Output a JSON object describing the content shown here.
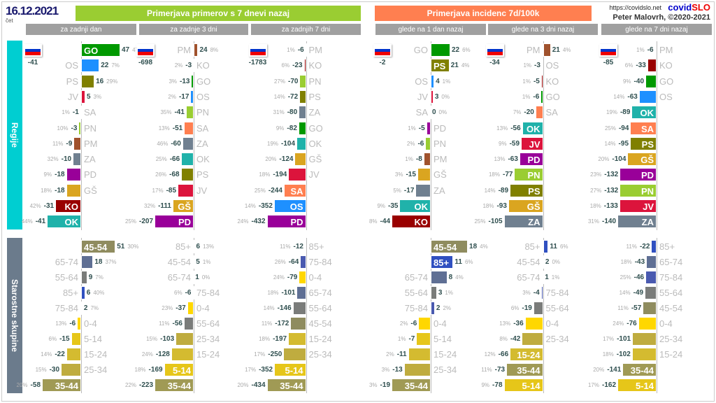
{
  "header": {
    "date": "16.12.2021",
    "day": "čet",
    "url": "https://covidslo.net",
    "brand_a": "covid",
    "brand_b": "SLO",
    "author": "Peter Malovrh, ©2020-2021"
  },
  "groups": [
    {
      "title": "Primerjava primerov s 7 dnevi nazaj",
      "color": "#9acd32"
    },
    {
      "title": "Primerjava incidenc 7d/100k",
      "color": "#ff7f50"
    }
  ],
  "sections": {
    "regions": "Regije",
    "ages": "Starostne skupine"
  },
  "colors": {
    "GO": "#009900",
    "OS": "#1e90ff",
    "PS": "#808000",
    "JV": "#dc143c",
    "SA": "#ff7f50",
    "PN": "#9acd32",
    "PM": "#a0522d",
    "ZA": "#708090",
    "PD": "#990099",
    "GŠ": "#daa520",
    "KO": "#990000",
    "OK": "#20b2aa",
    "45-54": "#8f8c5f",
    "65-74": "#5f6f94",
    "55-64": "#7a7c7a",
    "85+": "#3050c0",
    "75-84": "#4a5ab0",
    "0-4": "#ffd700",
    "5-14": "#e6c619",
    "15-24": "#d4bb30",
    "25-34": "#bfac3f",
    "35-44": "#a09a55"
  },
  "chart_data": [
    {
      "type": "bar",
      "title": "za zadnji dan",
      "total": "-41",
      "regions": [
        [
          "GO",
          47,
          "47%"
        ],
        [
          "OS",
          22,
          "7%"
        ],
        [
          "PS",
          16,
          "29%"
        ],
        [
          "JV",
          5,
          "3%"
        ],
        [
          "SA",
          -1,
          "1%"
        ],
        [
          "PN",
          -3,
          "10%"
        ],
        [
          "PM",
          -9,
          "11%"
        ],
        [
          "ZA",
          -10,
          "32%"
        ],
        [
          "PD",
          -18,
          "9%"
        ],
        [
          "GŠ",
          -18,
          "18%"
        ],
        [
          "KO",
          -31,
          "42%"
        ],
        [
          "OK",
          -41,
          "44%"
        ]
      ],
      "ages": [
        [
          "45-54",
          51,
          "30%"
        ],
        [
          "65-74",
          18,
          "37%"
        ],
        [
          "55-64",
          9,
          "7%"
        ],
        [
          "85+",
          6,
          "40%"
        ],
        [
          "75-84",
          2,
          "7%"
        ],
        [
          "0-4",
          -6,
          "13%"
        ],
        [
          "5-14",
          -15,
          "6%"
        ],
        [
          "15-24",
          -22,
          "14%"
        ],
        [
          "25-34",
          -30,
          "15%"
        ],
        [
          "35-44",
          -58,
          "20%"
        ]
      ]
    },
    {
      "type": "bar",
      "title": "za zadnje 3 dni",
      "total": "-698",
      "regions": [
        [
          "PM",
          24,
          "8%"
        ],
        [
          "KO",
          -3,
          "2%"
        ],
        [
          "GO",
          -13,
          "3%"
        ],
        [
          "OS",
          -17,
          "2%"
        ],
        [
          "PN",
          -41,
          "35%"
        ],
        [
          "SA",
          -51,
          "13%"
        ],
        [
          "ZA",
          -60,
          "46%"
        ],
        [
          "OK",
          -66,
          "25%"
        ],
        [
          "PS",
          -68,
          "26%"
        ],
        [
          "JV",
          -85,
          "17%"
        ],
        [
          "GŠ",
          -111,
          "32%"
        ],
        [
          "PD",
          -207,
          "25%"
        ]
      ],
      "ages": [
        [
          "85+",
          6,
          "13%"
        ],
        [
          "45-54",
          5,
          "1%"
        ],
        [
          "65-74",
          1,
          "0%"
        ],
        [
          "75-84",
          -6,
          "6%"
        ],
        [
          "0-4",
          -37,
          "23%"
        ],
        [
          "55-64",
          -56,
          "11%"
        ],
        [
          "25-34",
          -103,
          "15%"
        ],
        [
          "15-24",
          -128,
          "24%"
        ],
        [
          "5-14",
          -169,
          "18%"
        ],
        [
          "35-44",
          -223,
          "22%"
        ]
      ]
    },
    {
      "type": "bar",
      "title": "za zadnjih 7 dni",
      "total": "-1783",
      "regions": [
        [
          "PM",
          -6,
          "1%"
        ],
        [
          "KO",
          -23,
          "6%"
        ],
        [
          "PN",
          -70,
          "27%"
        ],
        [
          "PS",
          -72,
          "14%"
        ],
        [
          "ZA",
          -80,
          "31%"
        ],
        [
          "GO",
          -82,
          "9%"
        ],
        [
          "OK",
          -104,
          "19%"
        ],
        [
          "GŠ",
          -124,
          "20%"
        ],
        [
          "JV",
          -194,
          "18%"
        ],
        [
          "SA",
          -244,
          "25%"
        ],
        [
          "OS",
          -352,
          "14%"
        ],
        [
          "PD",
          -432,
          "24%"
        ]
      ],
      "ages": [
        [
          "85+",
          -12,
          "11%"
        ],
        [
          "75-84",
          -64,
          "26%"
        ],
        [
          "0-4",
          -79,
          "24%"
        ],
        [
          "65-74",
          -101,
          "18%"
        ],
        [
          "55-64",
          -146,
          "14%"
        ],
        [
          "45-54",
          -172,
          "11%"
        ],
        [
          "15-24",
          -197,
          "18%"
        ],
        [
          "25-34",
          -250,
          "17%"
        ],
        [
          "5-14",
          -352,
          "17%"
        ],
        [
          "35-44",
          -434,
          "20%"
        ]
      ]
    },
    {
      "type": "bar",
      "title": "glede na 1 dan nazaj",
      "total": "-2",
      "regions": [
        [
          "GO",
          22,
          "6%"
        ],
        [
          "PS",
          21,
          "4%"
        ],
        [
          "OS",
          4,
          "1%"
        ],
        [
          "JV",
          3,
          "0%"
        ],
        [
          "SA",
          0,
          "0%"
        ],
        [
          "PD",
          -5,
          "1%"
        ],
        [
          "PN",
          -6,
          "2%"
        ],
        [
          "PM",
          -8,
          "1%"
        ],
        [
          "GŠ",
          -15,
          "3%"
        ],
        [
          "ZA",
          -17,
          "5%"
        ],
        [
          "OK",
          -35,
          "9%"
        ],
        [
          "KO",
          -44,
          "8%"
        ]
      ],
      "ages": [
        [
          "45-54",
          18,
          "4%"
        ],
        [
          "85+",
          11,
          "6%"
        ],
        [
          "65-74",
          8,
          "4%"
        ],
        [
          "55-64",
          3,
          "1%"
        ],
        [
          "75-84",
          2,
          "2%"
        ],
        [
          "0-4",
          -6,
          "2%"
        ],
        [
          "5-14",
          -7,
          "1%"
        ],
        [
          "15-24",
          -11,
          "2%"
        ],
        [
          "25-34",
          -13,
          "3%"
        ],
        [
          "35-44",
          -19,
          "3%"
        ]
      ]
    },
    {
      "type": "bar",
      "title": "glede na 3 dni nazaj",
      "total": "-34",
      "regions": [
        [
          "PM",
          21,
          "4%"
        ],
        [
          "OS",
          -3,
          "1%"
        ],
        [
          "KO",
          -5,
          "1%"
        ],
        [
          "GO",
          -6,
          "1%"
        ],
        [
          "SA",
          -20,
          "7%"
        ],
        [
          "OK",
          -56,
          "13%"
        ],
        [
          "JV",
          -59,
          "9%"
        ],
        [
          "PD",
          -63,
          "13%"
        ],
        [
          "PN",
          -77,
          "18%"
        ],
        [
          "PS",
          -89,
          "14%"
        ],
        [
          "GŠ",
          -93,
          "18%"
        ],
        [
          "ZA",
          -105,
          "25%"
        ]
      ],
      "ages": [
        [
          "85+",
          11,
          "6%"
        ],
        [
          "45-54",
          2,
          "0%"
        ],
        [
          "65-74",
          1,
          "1%"
        ],
        [
          "75-84",
          -4,
          "3%"
        ],
        [
          "55-64",
          -19,
          "6%"
        ],
        [
          "0-4",
          -36,
          "13%"
        ],
        [
          "25-34",
          -42,
          "8%"
        ],
        [
          "15-24",
          -66,
          "12%"
        ],
        [
          "35-44",
          -73,
          "11%"
        ],
        [
          "5-14",
          -78,
          "9%"
        ]
      ]
    },
    {
      "type": "bar",
      "title": "glede na 7 dni nazaj",
      "total": "-85",
      "regions": [
        [
          "PM",
          -6,
          "1%"
        ],
        [
          "KO",
          -33,
          "6%"
        ],
        [
          "GO",
          -40,
          "9%"
        ],
        [
          "OS",
          -63,
          "14%"
        ],
        [
          "OK",
          -89,
          "19%"
        ],
        [
          "SA",
          -94,
          "25%"
        ],
        [
          "PS",
          -95,
          "14%"
        ],
        [
          "GŠ",
          -104,
          "20%"
        ],
        [
          "PD",
          -132,
          "23%"
        ],
        [
          "PN",
          -132,
          "27%"
        ],
        [
          "JV",
          -133,
          "18%"
        ],
        [
          "ZA",
          -140,
          "31%"
        ]
      ],
      "ages": [
        [
          "85+",
          -22,
          "11%"
        ],
        [
          "65-74",
          -43,
          "18%"
        ],
        [
          "75-84",
          -46,
          "25%"
        ],
        [
          "55-64",
          -49,
          "14%"
        ],
        [
          "45-54",
          -57,
          "11%"
        ],
        [
          "0-4",
          -76,
          "24%"
        ],
        [
          "25-34",
          -101,
          "17%"
        ],
        [
          "15-24",
          -102,
          "18%"
        ],
        [
          "35-44",
          -141,
          "20%"
        ],
        [
          "5-14",
          -162,
          "17%"
        ]
      ]
    }
  ]
}
